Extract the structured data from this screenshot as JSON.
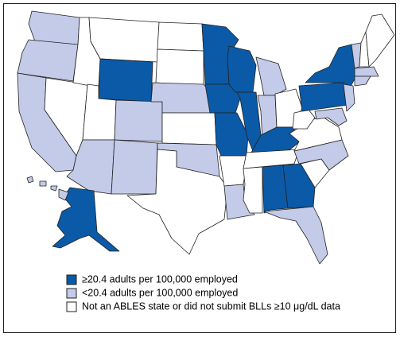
{
  "legend": [
    {
      "label": "≥20.4 adults per 100,000 employed",
      "color": "#0b5aa7"
    },
    {
      "label": "<20.4 adults per 100,000 employed",
      "color": "#c3cbe9"
    },
    {
      "label": "Not an ABLES state or did not submit BLLs ≥10 μg/dL data",
      "color": "#ffffff"
    }
  ]
}
